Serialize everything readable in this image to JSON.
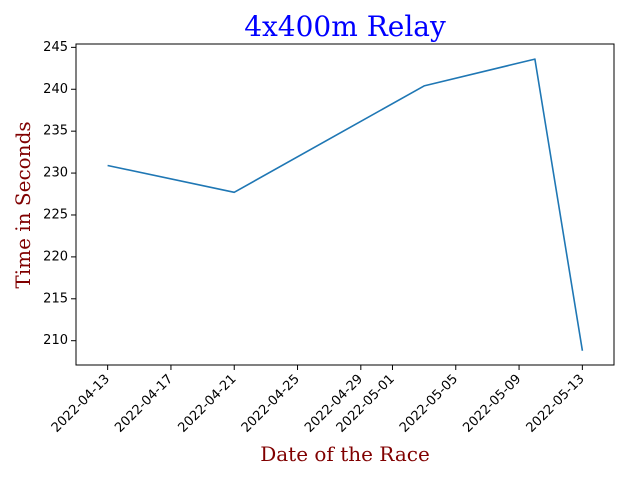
{
  "chart_data": {
    "type": "line",
    "title": "4x400m Relay",
    "xlabel": "Date of the Race",
    "ylabel": "Time in Seconds",
    "x": [
      "2022-04-13",
      "2022-04-21",
      "2022-05-03",
      "2022-05-10",
      "2022-05-13"
    ],
    "series": [
      {
        "values": [
          230.9,
          227.7,
          240.4,
          243.6,
          208.8
        ]
      }
    ],
    "xlim": [
      "2022-04-11",
      "2022-05-15"
    ],
    "ylim": [
      207.1,
      245.4
    ],
    "x_ticks": [
      "2022-04-13",
      "2022-04-17",
      "2022-04-21",
      "2022-04-25",
      "2022-04-29",
      "2022-05-01",
      "2022-05-05",
      "2022-05-09",
      "2022-05-13"
    ],
    "y_ticks": [
      210,
      215,
      220,
      225,
      230,
      235,
      240,
      245
    ],
    "grid": false,
    "colors": {
      "line": "#1f77b4",
      "title": "#0000ff",
      "axis_labels": "#800000"
    }
  }
}
